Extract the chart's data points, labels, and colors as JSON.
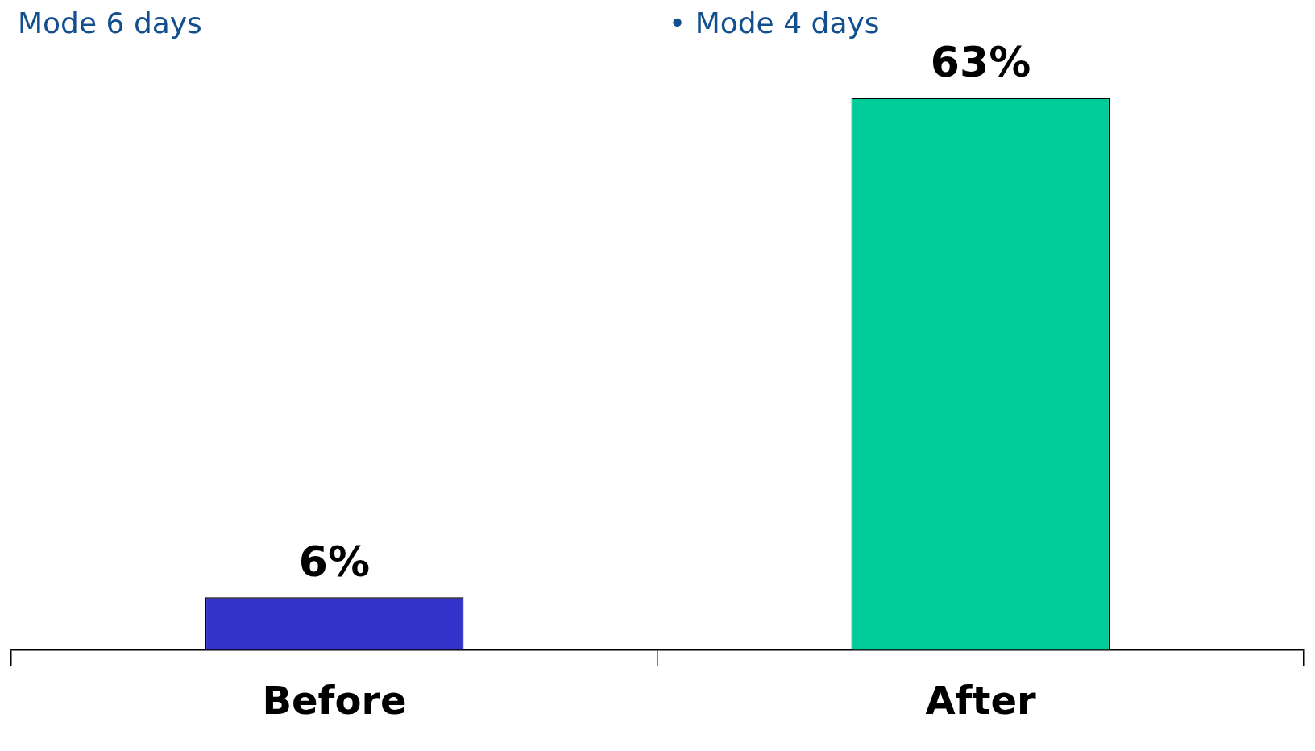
{
  "chart_data": {
    "type": "bar",
    "categories": [
      "Before",
      "After"
    ],
    "values": [
      6,
      63
    ],
    "colors": [
      "#3333cc",
      "#00cc99"
    ],
    "value_labels": [
      "6%",
      "63%"
    ],
    "annotations": [
      "Mode 6 days",
      "• Mode 4 days"
    ],
    "grid": false,
    "legend": false
  }
}
